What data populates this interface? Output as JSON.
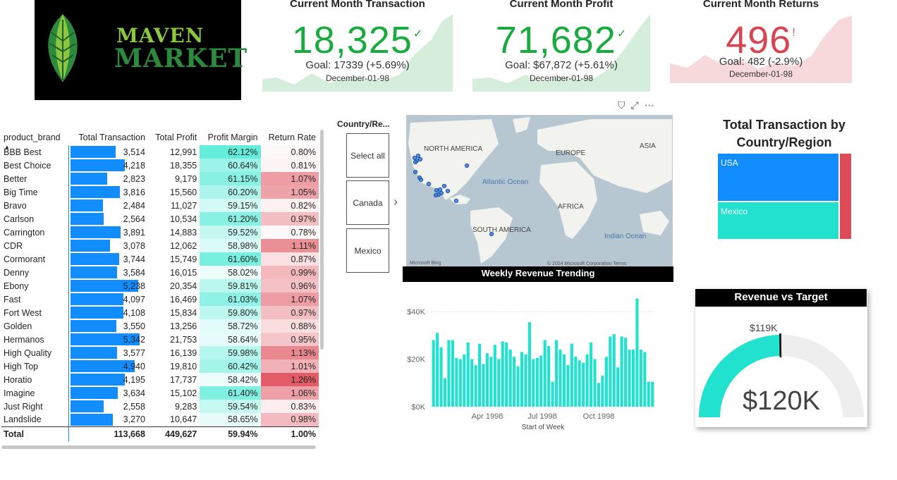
{
  "logo": {
    "line1": "MAVEN",
    "line2": "MARKET"
  },
  "kpis": [
    {
      "title": "Current Month Transaction",
      "value": "18,325",
      "status_icon": "check-icon",
      "status_glyph": "✓",
      "goal": "Goal: 17339 (+5.69%)",
      "date": "December-01-98",
      "color": "#1aab40",
      "fill": "#d5eedb",
      "good": true
    },
    {
      "title": "Current Month Profit",
      "value": "71,682",
      "status_icon": "check-icon",
      "status_glyph": "✓",
      "goal": "Goal: $67,872 (+5.61%)",
      "date": "December-01-98",
      "color": "#1aab40",
      "fill": "#d5eedb",
      "good": true
    },
    {
      "title": "Current Month Returns",
      "value": "496",
      "status_icon": "exclamation-icon",
      "status_glyph": "!",
      "goal": "Goal: 482 (-2.9%)",
      "date": "December-01-98",
      "color": "#d64550",
      "fill": "#f7d9dc",
      "good": false
    }
  ],
  "table": {
    "headers": [
      "product_brand",
      "Total Transaction",
      "Total Profit",
      "Profit Margin",
      "Return Rate"
    ],
    "rows": [
      {
        "brand": "BBB Best",
        "transactions": "3,514",
        "trans_n": 3514,
        "profit": "12,991",
        "margin": "62.12%",
        "margin_n": 62.12,
        "return_rate": "0.80%",
        "rr_n": 0.8
      },
      {
        "brand": "Best Choice",
        "transactions": "4,218",
        "trans_n": 4218,
        "profit": "18,355",
        "margin": "60.64%",
        "margin_n": 60.64,
        "return_rate": "0.81%",
        "rr_n": 0.81
      },
      {
        "brand": "Better",
        "transactions": "2,823",
        "trans_n": 2823,
        "profit": "9,179",
        "margin": "61.15%",
        "margin_n": 61.15,
        "return_rate": "1.07%",
        "rr_n": 1.07
      },
      {
        "brand": "Big Time",
        "transactions": "3,816",
        "trans_n": 3816,
        "profit": "15,560",
        "margin": "60.20%",
        "margin_n": 60.2,
        "return_rate": "1.05%",
        "rr_n": 1.05
      },
      {
        "brand": "Bravo",
        "transactions": "2,484",
        "trans_n": 2484,
        "profit": "11,027",
        "margin": "59.15%",
        "margin_n": 59.15,
        "return_rate": "0.82%",
        "rr_n": 0.82
      },
      {
        "brand": "Carlson",
        "transactions": "2,564",
        "trans_n": 2564,
        "profit": "10,534",
        "margin": "61.20%",
        "margin_n": 61.2,
        "return_rate": "0.97%",
        "rr_n": 0.97
      },
      {
        "brand": "Carrington",
        "transactions": "3,891",
        "trans_n": 3891,
        "profit": "14,883",
        "margin": "59.52%",
        "margin_n": 59.52,
        "return_rate": "0.78%",
        "rr_n": 0.78
      },
      {
        "brand": "CDR",
        "transactions": "3,078",
        "trans_n": 3078,
        "profit": "12,062",
        "margin": "58.98%",
        "margin_n": 58.98,
        "return_rate": "1.11%",
        "rr_n": 1.11
      },
      {
        "brand": "Cormorant",
        "transactions": "3,744",
        "trans_n": 3744,
        "profit": "15,749",
        "margin": "61.60%",
        "margin_n": 61.6,
        "return_rate": "0.87%",
        "rr_n": 0.87
      },
      {
        "brand": "Denny",
        "transactions": "3,584",
        "trans_n": 3584,
        "profit": "16,015",
        "margin": "58.02%",
        "margin_n": 58.02,
        "return_rate": "0.99%",
        "rr_n": 0.99
      },
      {
        "brand": "Ebony",
        "transactions": "5,238",
        "trans_n": 5238,
        "profit": "20,354",
        "margin": "59.81%",
        "margin_n": 59.81,
        "return_rate": "0.96%",
        "rr_n": 0.96
      },
      {
        "brand": "Fast",
        "transactions": "4,097",
        "trans_n": 4097,
        "profit": "16,469",
        "margin": "61.03%",
        "margin_n": 61.03,
        "return_rate": "1.07%",
        "rr_n": 1.07
      },
      {
        "brand": "Fort West",
        "transactions": "4,108",
        "trans_n": 4108,
        "profit": "15,834",
        "margin": "59.80%",
        "margin_n": 59.8,
        "return_rate": "0.97%",
        "rr_n": 0.97
      },
      {
        "brand": "Golden",
        "transactions": "3,550",
        "trans_n": 3550,
        "profit": "13,256",
        "margin": "58.72%",
        "margin_n": 58.72,
        "return_rate": "0.88%",
        "rr_n": 0.88
      },
      {
        "brand": "Hermanos",
        "transactions": "5,342",
        "trans_n": 5342,
        "profit": "21,753",
        "margin": "58.64%",
        "margin_n": 58.64,
        "return_rate": "0.95%",
        "rr_n": 0.95
      },
      {
        "brand": "High Quality",
        "transactions": "3,577",
        "trans_n": 3577,
        "profit": "16,139",
        "margin": "59.98%",
        "margin_n": 59.98,
        "return_rate": "1.13%",
        "rr_n": 1.13
      },
      {
        "brand": "High Top",
        "transactions": "4,940",
        "trans_n": 4940,
        "profit": "19,810",
        "margin": "60.42%",
        "margin_n": 60.42,
        "return_rate": "1.01%",
        "rr_n": 1.01
      },
      {
        "brand": "Horatio",
        "transactions": "4,195",
        "trans_n": 4195,
        "profit": "17,737",
        "margin": "58.42%",
        "margin_n": 58.42,
        "return_rate": "1.26%",
        "rr_n": 1.26
      },
      {
        "brand": "Imagine",
        "transactions": "3,634",
        "trans_n": 3634,
        "profit": "15,102",
        "margin": "61.40%",
        "margin_n": 61.4,
        "return_rate": "1.06%",
        "rr_n": 1.06
      },
      {
        "brand": "Just Right",
        "transactions": "2,558",
        "trans_n": 2558,
        "profit": "9,283",
        "margin": "59.54%",
        "margin_n": 59.54,
        "return_rate": "0.83%",
        "rr_n": 0.83
      },
      {
        "brand": "Landslide",
        "transactions": "3,270",
        "trans_n": 3270,
        "profit": "10,647",
        "margin": "58.65%",
        "margin_n": 58.65,
        "return_rate": "0.98%",
        "rr_n": 0.98
      }
    ],
    "total": {
      "label": "Total",
      "transactions": "113,668",
      "profit": "449,627",
      "margin": "59.94%",
      "return_rate": "1.00%"
    },
    "bar_color": "#118dff",
    "margin_color": "#2ee6cf",
    "return_color": "#de4a55"
  },
  "slicer": {
    "title": "Country/Re...",
    "options": [
      "Select all",
      "Canada",
      "Mexico"
    ]
  },
  "map": {
    "labels": {
      "north_america": "NORTH AMERICA",
      "europe": "EUROPE",
      "asia": "ASIA",
      "africa": "AFRICA",
      "south_america": "SOUTH AMERICA"
    },
    "oceans": {
      "atlantic": "Atlantic Ocean",
      "indian": "Indian Ocean"
    },
    "footer_bing": "Microsoft Bing",
    "footer_copy": "© 2024 Microsoft Corporation  Terms"
  },
  "weekly": {
    "title": "Weekly Revenue Trending",
    "xlabel": "Start of Week"
  },
  "treemap": {
    "title": "Total Transaction by Country/Region",
    "items": [
      {
        "label": "USA",
        "color": "#118dff"
      },
      {
        "label": "Mexico",
        "color": "#20e2cf"
      },
      {
        "label": "",
        "color": "#de4a55"
      }
    ]
  },
  "gauge": {
    "title": "Revenue vs Target",
    "target_label": "$119K",
    "value_label": "$120K",
    "fill_color": "#20e2cf",
    "track_color": "#eeeeee",
    "min": 0,
    "max": 240,
    "value": 120,
    "target": 119
  },
  "chart_data": {
    "type": "bar",
    "title": "Weekly Revenue Trending",
    "xlabel": "Start of Week",
    "ylabel": "",
    "x_ticks": [
      "Apr 1998",
      "Jul 1998",
      "Oct 1998"
    ],
    "y_ticks": [
      "$0K",
      "$20K",
      "$40K"
    ],
    "ylim": [
      0,
      46000
    ],
    "values": [
      28000,
      31000,
      25000,
      12000,
      28000,
      28000,
      20500,
      20000,
      22000,
      27000,
      20000,
      17500,
      26500,
      18000,
      22500,
      21000,
      26000,
      20000,
      27500,
      27000,
      24000,
      21000,
      17000,
      23000,
      22000,
      35500,
      20000,
      20500,
      21500,
      28000,
      25500,
      10500,
      28000,
      24000,
      22000,
      17500,
      26500,
      21000,
      19500,
      18500,
      22000,
      27000,
      20000,
      10000,
      13000,
      21000,
      29500,
      30500,
      16500,
      29500,
      29000,
      24000,
      24000,
      45500,
      24000,
      23000,
      10500,
      10500
    ],
    "bar_color": "#20e2cf"
  }
}
